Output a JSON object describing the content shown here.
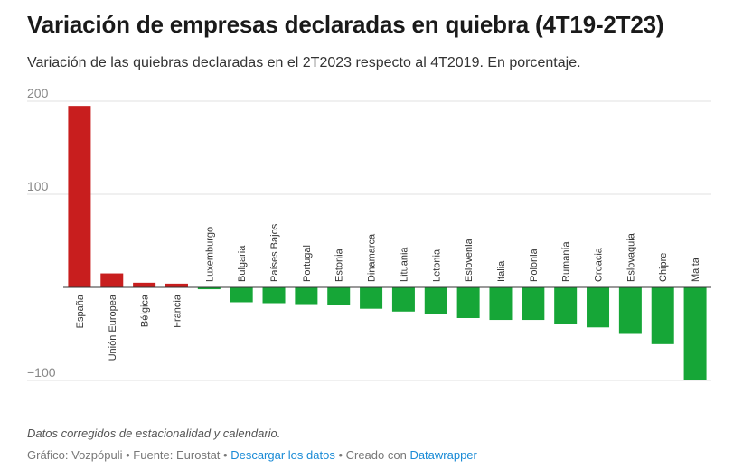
{
  "title": "Variación de empresas declaradas en quiebra (4T19-2T23)",
  "subtitle": "Variación de las quiebras declaradas en el 2T2023 respecto al 4T2019. En porcentaje.",
  "notes": "Datos corregidos de estacionalidad y calendario.",
  "footer": {
    "grafico": "Gráfico: Vozpópuli",
    "sep1": " • ",
    "fuente": "Fuente: Eurostat",
    "sep2": " • ",
    "download_link": "Descargar los datos",
    "sep3": " • ",
    "created": "Creado con ",
    "datawrapper_link": "Datawrapper"
  },
  "colors": {
    "positive": "#c81e1e",
    "negative": "#16a637",
    "link": "#1a8bd6"
  },
  "chart_data": {
    "type": "bar",
    "orientation": "vertical",
    "title": "Variación de empresas declaradas en quiebra (4T19-2T23)",
    "categories": [
      "España",
      "Unión Europea",
      "Bélgica",
      "Francia",
      "Luxemburgo",
      "Bulgaria",
      "Países Bajos",
      "Portugal",
      "Estonia",
      "Dinamarca",
      "Lituania",
      "Letonia",
      "Eslovenia",
      "Italia",
      "Polonia",
      "Rumanía",
      "Croacia",
      "Eslovaquia",
      "Chipre",
      "Malta"
    ],
    "values": [
      195,
      15,
      5,
      4,
      -2,
      -16,
      -17,
      -18,
      -19,
      -23,
      -26,
      -29,
      -33,
      -35,
      -35,
      -39,
      -43,
      -50,
      -61,
      -100
    ],
    "yticks": [
      200,
      100,
      -100
    ],
    "ytick_labels": [
      "200",
      "100",
      "−100"
    ],
    "ylim": [
      -100,
      200
    ],
    "grid": true,
    "xlabel": "",
    "ylabel": ""
  }
}
